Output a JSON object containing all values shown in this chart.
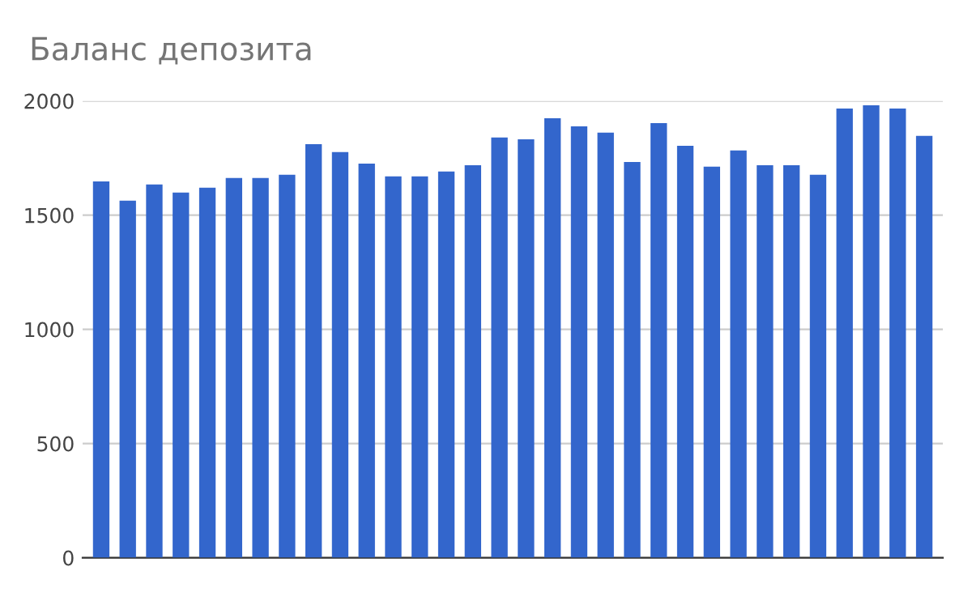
{
  "chart_data": {
    "type": "bar",
    "title": "Баланс депозита",
    "categories": [
      null,
      null,
      null,
      null,
      null,
      null,
      null,
      null,
      null,
      null,
      null,
      null,
      null,
      null,
      null,
      null,
      null,
      null,
      null,
      null,
      null,
      null,
      null,
      null,
      null,
      null,
      null,
      null,
      null,
      null,
      null,
      null
    ],
    "values": [
      1648,
      1563,
      1634,
      1599,
      1620,
      1663,
      1663,
      1677,
      1811,
      1776,
      1726,
      1670,
      1670,
      1691,
      1719,
      1840,
      1832,
      1924,
      1889,
      1861,
      1733,
      1903,
      1804,
      1712,
      1783,
      1719,
      1719,
      1677,
      1967,
      1981,
      1967,
      1847
    ],
    "color": "#3366cc",
    "ylim": [
      0,
      2000
    ],
    "yticks": [
      0,
      500,
      1000,
      1500,
      2000
    ],
    "grid": "y",
    "tick_labels": "y"
  }
}
